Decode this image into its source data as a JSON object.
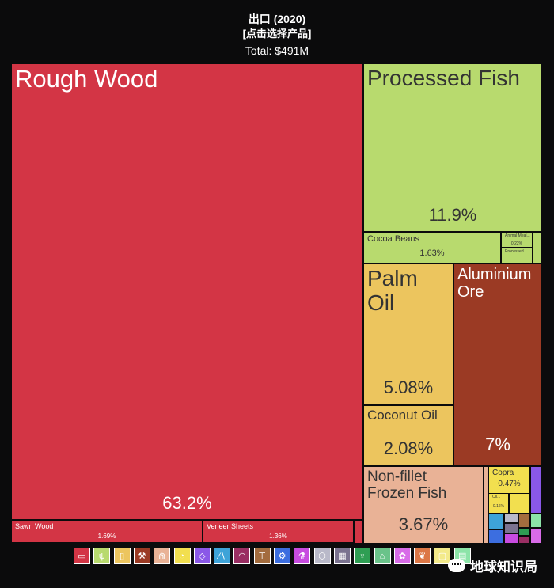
{
  "header": {
    "title": "出口 (2020)",
    "subtitle": "[点击选择产品]",
    "total": "Total: $491M"
  },
  "chart_data": {
    "type": "treemap",
    "total": "$491M",
    "products": [
      {
        "name": "Rough Wood",
        "share": 63.2,
        "label": "63.2%",
        "color": "#d33545"
      },
      {
        "name": "Sawn Wood",
        "share": 1.69,
        "label": "1.69%",
        "color": "#d33545"
      },
      {
        "name": "Veneer Sheets",
        "share": 1.36,
        "label": "1.36%",
        "color": "#d33545"
      },
      {
        "name": "Processed Fish",
        "share": 11.9,
        "label": "11.9%",
        "color": "#b8da6e"
      },
      {
        "name": "Cocoa Beans",
        "share": 1.63,
        "label": "1.63%",
        "color": "#b8da6e"
      },
      {
        "name": "Animal Meal...",
        "share": 0.22,
        "label": "0.22%",
        "color": "#b8da6e"
      },
      {
        "name": "Processed...",
        "share": null,
        "label": "",
        "color": "#b8da6e"
      },
      {
        "name": "Palm\nOil",
        "share": 5.08,
        "label": "5.08%",
        "color": "#ecc55e"
      },
      {
        "name": "Coconut Oil",
        "share": 2.08,
        "label": "2.08%",
        "color": "#ecc55e"
      },
      {
        "name": "Aluminium\nOre",
        "share": 7,
        "label": "7%",
        "color": "#9b3a24"
      },
      {
        "name": "Non-fillet\nFrozen Fish",
        "share": 3.67,
        "label": "3.67%",
        "color": "#e9b296"
      },
      {
        "name": "Copra",
        "share": 0.47,
        "label": "0.47%",
        "color": "#f2df4f"
      },
      {
        "name": "Oil...",
        "share": 0.16,
        "label": "0.16%",
        "color": "#f2df4f"
      }
    ],
    "legend": [
      {
        "icon": "textiles-icon",
        "color": "#d33545",
        "glyph": "▭"
      },
      {
        "icon": "vegetable-icon",
        "color": "#b8da6e",
        "glyph": "ψ"
      },
      {
        "icon": "foodstuffs-icon",
        "color": "#ecc55e",
        "glyph": "▯"
      },
      {
        "icon": "minerals-icon",
        "color": "#9b3a24",
        "glyph": "⚒"
      },
      {
        "icon": "animal-icon",
        "color": "#e9b296",
        "glyph": "⋒"
      },
      {
        "icon": "fats-oils-icon",
        "color": "#f2df4f",
        "glyph": "◔"
      },
      {
        "icon": "precious-stones-icon",
        "color": "#8a58e8",
        "glyph": "◇"
      },
      {
        "icon": "transport-icon",
        "color": "#3ea3d8",
        "glyph": "∕∖"
      },
      {
        "icon": "instruments-icon",
        "color": "#9a2e63",
        "glyph": "◠"
      },
      {
        "icon": "metals-icon",
        "color": "#a36c3e",
        "glyph": "⊤"
      },
      {
        "icon": "machines-icon",
        "color": "#3c6ee0",
        "glyph": "⚙"
      },
      {
        "icon": "chemicals-icon",
        "color": "#c84be0",
        "glyph": "⚗"
      },
      {
        "icon": "plastics-icon",
        "color": "#b9b9c9",
        "glyph": "⬡"
      },
      {
        "icon": "arts-icon",
        "color": "#7b7390",
        "glyph": "▦"
      },
      {
        "icon": "textile-products-icon",
        "color": "#2e9e53",
        "glyph": "♆"
      },
      {
        "icon": "footwear-icon",
        "color": "#6ac38a",
        "glyph": "⌂"
      },
      {
        "icon": "miscellaneous-icon",
        "color": "#d86be8",
        "glyph": "✿"
      },
      {
        "icon": "wood-products-icon",
        "color": "#dc7746",
        "glyph": "❦"
      },
      {
        "icon": "paper-icon",
        "color": "#f3ea8a",
        "glyph": "▢"
      },
      {
        "icon": "stone-glass-icon",
        "color": "#8ce4a8",
        "glyph": "▤"
      }
    ]
  },
  "watermark": {
    "text": "地球知识局"
  }
}
